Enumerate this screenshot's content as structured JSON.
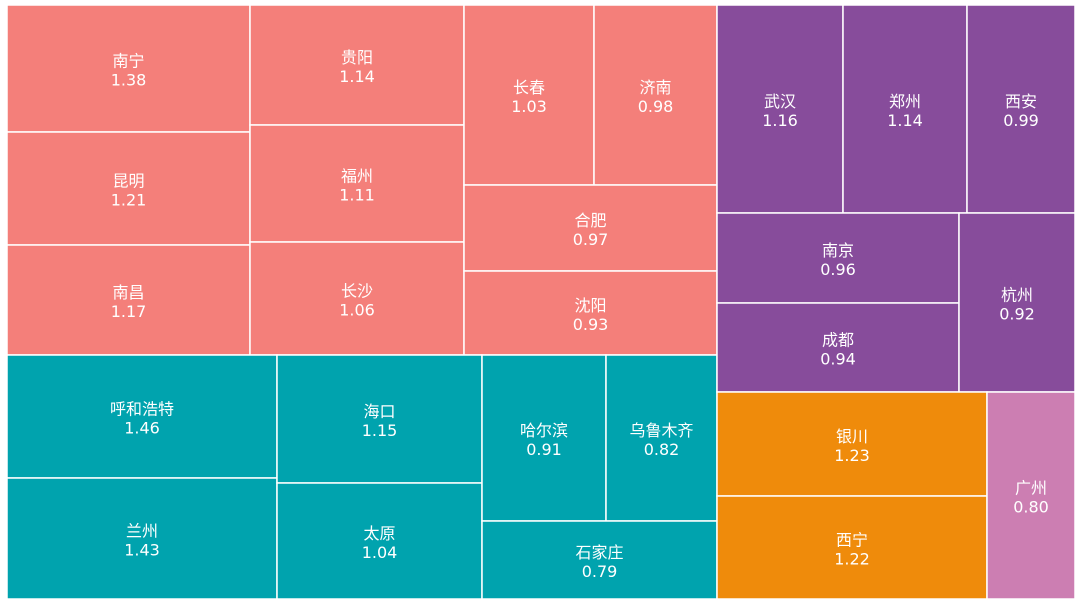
{
  "chart_data": {
    "type": "treemap",
    "groups": [
      {
        "color": "#F47F7A",
        "items": [
          {
            "name": "南宁",
            "value": 1.38
          },
          {
            "name": "昆明",
            "value": 1.21
          },
          {
            "name": "南昌",
            "value": 1.17
          },
          {
            "name": "贵阳",
            "value": 1.14
          },
          {
            "name": "福州",
            "value": 1.11
          },
          {
            "name": "长沙",
            "value": 1.06
          },
          {
            "name": "长春",
            "value": 1.03
          },
          {
            "name": "济南",
            "value": 0.98
          },
          {
            "name": "合肥",
            "value": 0.97
          },
          {
            "name": "沈阳",
            "value": 0.93
          }
        ]
      },
      {
        "color": "#00A3AE",
        "items": [
          {
            "name": "呼和浩特",
            "value": 1.46
          },
          {
            "name": "兰州",
            "value": 1.43
          },
          {
            "name": "海口",
            "value": 1.15
          },
          {
            "name": "太原",
            "value": 1.04
          },
          {
            "name": "哈尔滨",
            "value": 0.91
          },
          {
            "name": "乌鲁木齐",
            "value": 0.82
          },
          {
            "name": "石家庄",
            "value": 0.79
          }
        ]
      },
      {
        "color": "#874C9B",
        "items": [
          {
            "name": "武汉",
            "value": 1.16
          },
          {
            "name": "郑州",
            "value": 1.14
          },
          {
            "name": "西安",
            "value": 0.99
          },
          {
            "name": "南京",
            "value": 0.96
          },
          {
            "name": "成都",
            "value": 0.94
          },
          {
            "name": "杭州",
            "value": 0.92
          }
        ]
      },
      {
        "color": "#EF8B0B",
        "items": [
          {
            "name": "银川",
            "value": 1.23
          },
          {
            "name": "西宁",
            "value": 1.22
          }
        ]
      },
      {
        "color": "#CC7EB2",
        "items": [
          {
            "name": "广州",
            "value": 0.8
          }
        ]
      }
    ]
  }
}
